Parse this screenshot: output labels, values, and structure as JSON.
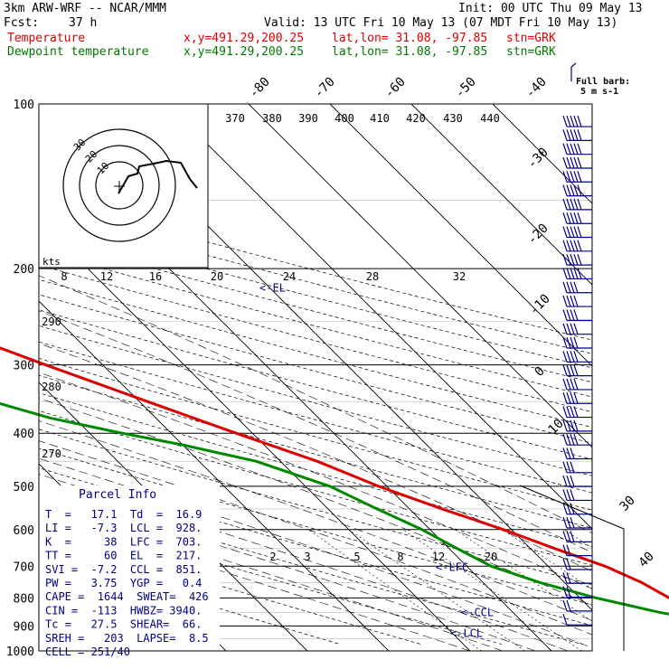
{
  "header": {
    "model": "3km ARW-WRF -- NCAR/MMM",
    "init": "Init: 00 UTC Thu 09 May 13",
    "fcst_label": "Fcst:",
    "fcst_value": "37 h",
    "valid": "Valid: 13 UTC Fri 10 May 13 (07 MDT Fri 10 May 13)",
    "temp_label": "Temperature",
    "dew_label": "Dewpoint temperature",
    "xy": "x,y=491.29,200.25",
    "latlon": "lat,lon= 31.08, -97.85",
    "stn": "stn=GRK"
  },
  "legend_barb": {
    "title": "Full barb:",
    "value": "5 m s-1"
  },
  "colors": {
    "temperature": "#dd0000",
    "dewpoint": "#008800",
    "barbs": "#000088",
    "grid": "#000000"
  },
  "hodograph": {
    "units_label": "kts",
    "ring_labels": [
      "30",
      "20",
      "10"
    ],
    "speed_ticks": [
      "8",
      "12",
      "16",
      "20",
      "24",
      "28",
      "32"
    ]
  },
  "axes": {
    "pressure_levels": [
      "100",
      "200",
      "300",
      "400",
      "500",
      "600",
      "700",
      "800",
      "900",
      "1000"
    ],
    "isotherm_labels_top": [
      "-80",
      "-70",
      "-60",
      "-50",
      "-40"
    ],
    "isotherm_labels_right": [
      "-30",
      "-20",
      "-10",
      "0",
      "10"
    ],
    "isotherm_labels_corner": [
      "30",
      "40"
    ],
    "theta_labels_top": [
      "370",
      "380",
      "390",
      "400",
      "410",
      "420",
      "430",
      "440"
    ],
    "theta_labels_left": [
      "290",
      "280",
      "270"
    ],
    "mixing_ratio_labels": [
      "2",
      "3",
      "5",
      "8",
      "12",
      "20"
    ]
  },
  "parcel_info": {
    "title": "Parcel Info",
    "rows": [
      "T  =   17.1  Td  =  16.9",
      "LI =   -7.3  LCL =  928.",
      "K  =     38  LFC =  703.",
      "TT =     60  EL  =  217.",
      "SVI =  -7.2  CCL =  851.",
      "PW =   3.75  YGP =   0.4",
      "CAPE =  1644  SWEAT=  426",
      "CIN =  -113  HWBZ= 3940.",
      "Tc =   27.5  SHEAR=  66.",
      "SREH =   203  LAPSE=  8.5",
      "CELL = 251/40"
    ]
  },
  "annotations": {
    "el": "<-EL",
    "lfc": "<-LFC",
    "ccl": "<-CCL",
    "lcl": "<-LCL"
  },
  "chart_data": {
    "type": "line",
    "title": "3km ARW-WRF -- NCAR/MMM",
    "ylabel": "",
    "xlabel": "",
    "y_scale": "log pressure (inverted)",
    "ylim": [
      1000,
      100
    ],
    "series": [
      {
        "name": "Temperature",
        "unit": "C",
        "points": [
          [
            938,
            24
          ],
          [
            920,
            26
          ],
          [
            900,
            25
          ],
          [
            850,
            23
          ],
          [
            800,
            21
          ],
          [
            750,
            19.5
          ],
          [
            700,
            17
          ],
          [
            650,
            13
          ],
          [
            600,
            9
          ],
          [
            550,
            4
          ],
          [
            500,
            -1
          ],
          [
            450,
            -5.5
          ],
          [
            400,
            -12
          ],
          [
            350,
            -19
          ],
          [
            300,
            -27
          ],
          [
            250,
            -36
          ],
          [
            210,
            -44
          ],
          [
            180,
            -50
          ],
          [
            160,
            -54
          ],
          [
            140,
            -59
          ],
          [
            125,
            -64
          ],
          [
            110,
            -70
          ],
          [
            100,
            -74
          ]
        ]
      },
      {
        "name": "Dewpoint temperature",
        "unit": "C",
        "points": [
          [
            938,
            24
          ],
          [
            920,
            24
          ],
          [
            900,
            23
          ],
          [
            870,
            21
          ],
          [
            850,
            18
          ],
          [
            800,
            12
          ],
          [
            750,
            7
          ],
          [
            700,
            3
          ],
          [
            650,
            1
          ],
          [
            600,
            -1
          ],
          [
            550,
            -4
          ],
          [
            500,
            -7
          ],
          [
            450,
            -13
          ],
          [
            420,
            -20
          ],
          [
            400,
            -26
          ],
          [
            375,
            -33
          ],
          [
            350,
            -38
          ],
          [
            300,
            -47
          ],
          [
            250,
            -54
          ],
          [
            200,
            -61
          ],
          [
            170,
            -66
          ],
          [
            140,
            -73
          ],
          [
            120,
            -78
          ],
          [
            100,
            -84
          ]
        ]
      }
    ]
  }
}
